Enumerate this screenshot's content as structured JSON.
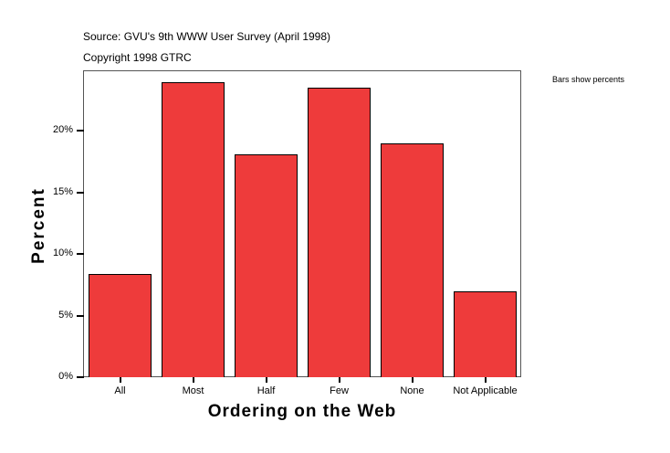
{
  "header": {
    "source": "Source: GVU's 9th WWW User Survey (April 1998)",
    "copyright": "Copyright 1998 GTRC",
    "note": "Bars show percents"
  },
  "chart_data": {
    "type": "bar",
    "title": "Source: GVU's 9th WWW User Survey (April 1998)",
    "subtitle": "Copyright 1998 GTRC",
    "annotation": "Bars show percents",
    "xlabel": "Ordering on the Web",
    "ylabel": "Percent",
    "categories": [
      "All",
      "Most",
      "Half",
      "Few",
      "None",
      "Not Applicable"
    ],
    "values": [
      8.4,
      23.9,
      18.1,
      23.5,
      19.0,
      7.0
    ],
    "yticks": [
      "0%",
      "5%",
      "10%",
      "15%",
      "20%"
    ],
    "ylim": [
      0,
      24.9
    ],
    "grid": false,
    "legend": "none",
    "bar_color": "#ee3b3b"
  }
}
